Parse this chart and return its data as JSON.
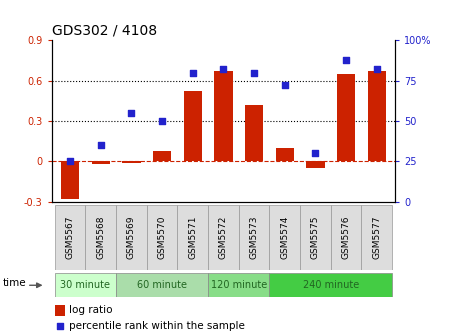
{
  "title": "GDS302 / 4108",
  "samples": [
    "GSM5567",
    "GSM5568",
    "GSM5569",
    "GSM5570",
    "GSM5571",
    "GSM5572",
    "GSM5573",
    "GSM5574",
    "GSM5575",
    "GSM5576",
    "GSM5577"
  ],
  "log_ratio": [
    -0.28,
    -0.02,
    -0.01,
    0.08,
    0.52,
    0.67,
    0.42,
    0.1,
    -0.05,
    0.65,
    0.67
  ],
  "percentile": [
    25,
    35,
    55,
    50,
    80,
    82,
    80,
    72,
    30,
    88,
    82
  ],
  "bar_color": "#cc2200",
  "dot_color": "#2222cc",
  "time_groups": [
    {
      "label": "30 minute",
      "start": 0,
      "end": 1,
      "color": "#ccffcc"
    },
    {
      "label": "60 minute",
      "start": 2,
      "end": 4,
      "color": "#aaddaa"
    },
    {
      "label": "120 minute",
      "start": 5,
      "end": 6,
      "color": "#88dd88"
    },
    {
      "label": "240 minute",
      "start": 7,
      "end": 10,
      "color": "#44cc44"
    }
  ],
  "ylim_left": [
    -0.3,
    0.9
  ],
  "ylim_right": [
    0,
    100
  ],
  "yticks_left": [
    -0.3,
    0.0,
    0.3,
    0.6,
    0.9
  ],
  "ytick_labels_left": [
    "-0.3",
    "0",
    "0.3",
    "0.6",
    "0.9"
  ],
  "yticks_right": [
    0,
    25,
    50,
    75,
    100
  ],
  "ytick_labels_right": [
    "0",
    "25",
    "50",
    "75",
    "100%"
  ],
  "hlines": [
    0.3,
    0.6
  ],
  "zero_line_color": "#cc2200",
  "grid_color": "black",
  "bg_color": "white",
  "plot_bg": "white",
  "title_fontsize": 10,
  "tick_fontsize": 7,
  "legend_fontsize": 7.5,
  "axis_label_color_left": "#cc2200",
  "axis_label_color_right": "#2222cc"
}
